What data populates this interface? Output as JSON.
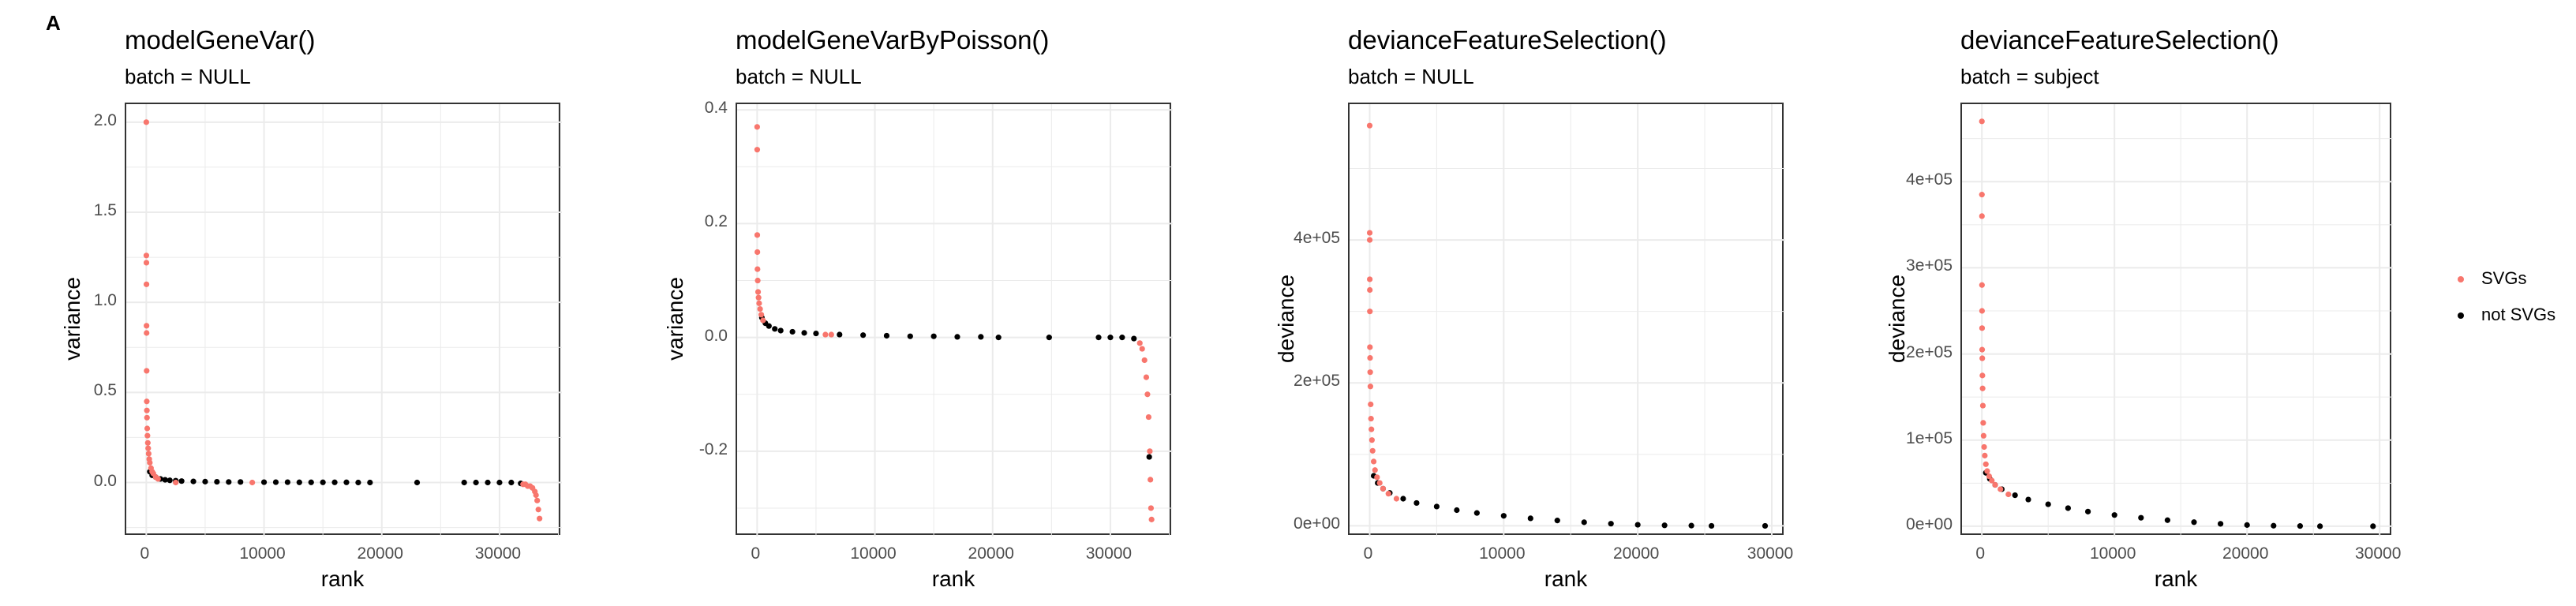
{
  "panel_label": "A",
  "colors": {
    "svg": "#F8766D",
    "not_svg": "#000000",
    "grid": "#ebebeb"
  },
  "legend": {
    "placement": "right",
    "entries": [
      {
        "label": "SVGs",
        "color": "#F8766D"
      },
      {
        "label": "not SVGs",
        "color": "#000000"
      }
    ]
  },
  "chart_data": [
    {
      "type": "scatter",
      "title": "modelGeneVar()",
      "subtitle": "batch = NULL",
      "xlabel": "rank",
      "ylabel": "variance",
      "xlim": [
        -1700,
        35300
      ],
      "ylim": [
        -0.3,
        2.1
      ],
      "grid": true,
      "x_ticks": [
        0,
        10000,
        20000,
        30000
      ],
      "x_tick_labels": [
        "0",
        "10000",
        "20000",
        "30000"
      ],
      "y_ticks": [
        0,
        0.5,
        1,
        1.5,
        2
      ],
      "y_tick_labels": [
        "0.0",
        "0.5",
        "1.0",
        "1.5",
        "2.0"
      ],
      "series": [
        {
          "name": "SVGs",
          "x": [
            1,
            5,
            10,
            15,
            20,
            25,
            30,
            40,
            50,
            60,
            80,
            100,
            130,
            160,
            200,
            250,
            300,
            400,
            500,
            600,
            800,
            1000,
            2500,
            9000,
            32000,
            32200,
            32400,
            32600,
            32800,
            33000,
            33100,
            33200,
            33300,
            33400
          ],
          "y": [
            2.0,
            1.26,
            1.22,
            1.1,
            0.87,
            0.83,
            0.62,
            0.45,
            0.4,
            0.36,
            0.3,
            0.26,
            0.22,
            0.19,
            0.16,
            0.13,
            0.11,
            0.08,
            0.06,
            0.05,
            0.03,
            0.02,
            0.0,
            0.0,
            -0.01,
            -0.01,
            -0.02,
            -0.02,
            -0.03,
            -0.05,
            -0.07,
            -0.1,
            -0.15,
            -0.2
          ]
        },
        {
          "name": "not SVGs",
          "x": [
            300,
            500,
            800,
            1200,
            1600,
            2000,
            2500,
            3000,
            4000,
            5000,
            6000,
            7000,
            8000,
            10000,
            11000,
            12000,
            13000,
            14000,
            15000,
            16000,
            17000,
            18000,
            19000,
            23000,
            27000,
            28000,
            29000,
            30000,
            31000,
            31800
          ],
          "y": [
            0.06,
            0.04,
            0.03,
            0.02,
            0.015,
            0.012,
            0.01,
            0.008,
            0.006,
            0.005,
            0.004,
            0.003,
            0.003,
            0.002,
            0.002,
            0.002,
            0.001,
            0.001,
            0.001,
            0.001,
            0.001,
            0.0,
            0.0,
            0.0,
            0.0,
            0.0,
            0.0,
            0.0,
            0.0,
            -0.005
          ]
        }
      ]
    },
    {
      "type": "scatter",
      "title": "modelGeneVarByPoisson()",
      "subtitle": "batch = NULL",
      "xlabel": "rank",
      "ylabel": "variance",
      "xlim": [
        -1700,
        35300
      ],
      "ylim": [
        -0.35,
        0.41
      ],
      "grid": true,
      "x_ticks": [
        0,
        10000,
        20000,
        30000
      ],
      "x_tick_labels": [
        "0",
        "10000",
        "20000",
        "30000"
      ],
      "y_ticks": [
        -0.2,
        0,
        0.2,
        0.4
      ],
      "y_tick_labels": [
        "-0.2",
        "0.0",
        "0.2",
        "0.4"
      ],
      "series": [
        {
          "name": "SVGs",
          "x": [
            1,
            5,
            10,
            20,
            30,
            50,
            80,
            120,
            170,
            250,
            350,
            500,
            5800,
            6300,
            32500,
            32700,
            32900,
            33050,
            33150,
            33250,
            33350,
            33400,
            33450,
            33500
          ],
          "y": [
            0.37,
            0.33,
            0.18,
            0.15,
            0.12,
            0.1,
            0.08,
            0.07,
            0.06,
            0.05,
            0.04,
            0.03,
            0.005,
            0.005,
            -0.01,
            -0.02,
            -0.04,
            -0.07,
            -0.1,
            -0.14,
            -0.2,
            -0.25,
            -0.3,
            -0.32
          ]
        },
        {
          "name": "not SVGs",
          "x": [
            400,
            700,
            1000,
            1500,
            2000,
            3000,
            4000,
            5000,
            7000,
            9000,
            11000,
            13000,
            15000,
            17000,
            19000,
            20500,
            24800,
            29000,
            30000,
            31000,
            32000,
            33300
          ],
          "y": [
            0.035,
            0.025,
            0.02,
            0.015,
            0.012,
            0.01,
            0.008,
            0.007,
            0.005,
            0.004,
            0.003,
            0.002,
            0.002,
            0.001,
            0.001,
            0.0,
            0.0,
            0.0,
            0.0,
            0.0,
            -0.002,
            -0.21
          ]
        }
      ]
    },
    {
      "type": "scatter",
      "title": "devianceFeatureSelection()",
      "subtitle": "batch = NULL",
      "xlabel": "rank",
      "ylabel": "deviance",
      "xlim": [
        -1500,
        31000
      ],
      "ylim": [
        -15000,
        590000
      ],
      "grid": true,
      "x_ticks": [
        0,
        10000,
        20000,
        30000
      ],
      "x_tick_labels": [
        "0",
        "10000",
        "20000",
        "30000"
      ],
      "y_ticks": [
        0,
        200000,
        400000
      ],
      "y_tick_labels": [
        "0e+00",
        "2e+05",
        "4e+05"
      ],
      "series": [
        {
          "name": "SVGs",
          "x": [
            1,
            3,
            5,
            8,
            12,
            16,
            20,
            30,
            40,
            55,
            75,
            100,
            130,
            170,
            220,
            300,
            400,
            550,
            750,
            1000,
            1400,
            2000
          ],
          "y": [
            560000,
            410000,
            400000,
            345000,
            330000,
            300000,
            250000,
            235000,
            215000,
            195000,
            170000,
            150000,
            135000,
            120000,
            105000,
            90000,
            78000,
            68000,
            60000,
            52000,
            45000,
            38000
          ]
        },
        {
          "name": "not SVGs",
          "x": [
            300,
            600,
            1000,
            1500,
            2500,
            3500,
            5000,
            6500,
            8000,
            10000,
            12000,
            14000,
            16000,
            18000,
            20000,
            22000,
            24000,
            25500,
            29500
          ],
          "y": [
            70000,
            60000,
            52000,
            46000,
            38000,
            32000,
            27000,
            22000,
            18000,
            14000,
            10500,
            7500,
            5000,
            3000,
            1500,
            700,
            300,
            0,
            0
          ]
        }
      ]
    },
    {
      "type": "scatter",
      "title": "devianceFeatureSelection()",
      "subtitle": "batch = subject",
      "xlabel": "rank",
      "ylabel": "deviance",
      "xlim": [
        -1500,
        31000
      ],
      "ylim": [
        -12000,
        490000
      ],
      "grid": true,
      "x_ticks": [
        0,
        10000,
        20000,
        30000
      ],
      "x_tick_labels": [
        "0",
        "10000",
        "20000",
        "30000"
      ],
      "y_ticks": [
        0,
        100000,
        200000,
        300000,
        400000
      ],
      "y_tick_labels": [
        "0e+00",
        "1e+05",
        "2e+05",
        "3e+05",
        "4e+05"
      ],
      "series": [
        {
          "name": "SVGs",
          "x": [
            1,
            3,
            5,
            8,
            12,
            16,
            20,
            30,
            40,
            55,
            75,
            100,
            130,
            170,
            220,
            300,
            400,
            550,
            750,
            1000,
            1400,
            2000
          ],
          "y": [
            470000,
            385000,
            360000,
            280000,
            250000,
            230000,
            205000,
            195000,
            175000,
            160000,
            140000,
            120000,
            105000,
            92000,
            82000,
            72000,
            64000,
            58000,
            53000,
            48000,
            43000,
            37000
          ]
        },
        {
          "name": "not SVGs",
          "x": [
            300,
            600,
            1000,
            1500,
            2500,
            3500,
            5000,
            6500,
            8000,
            10000,
            12000,
            14000,
            16000,
            18000,
            20000,
            22000,
            24000,
            25500,
            29500
          ],
          "y": [
            62000,
            55000,
            48000,
            43000,
            36000,
            31000,
            25500,
            21000,
            17000,
            13000,
            9800,
            7000,
            4700,
            2800,
            1400,
            600,
            250,
            0,
            0
          ]
        }
      ]
    }
  ]
}
